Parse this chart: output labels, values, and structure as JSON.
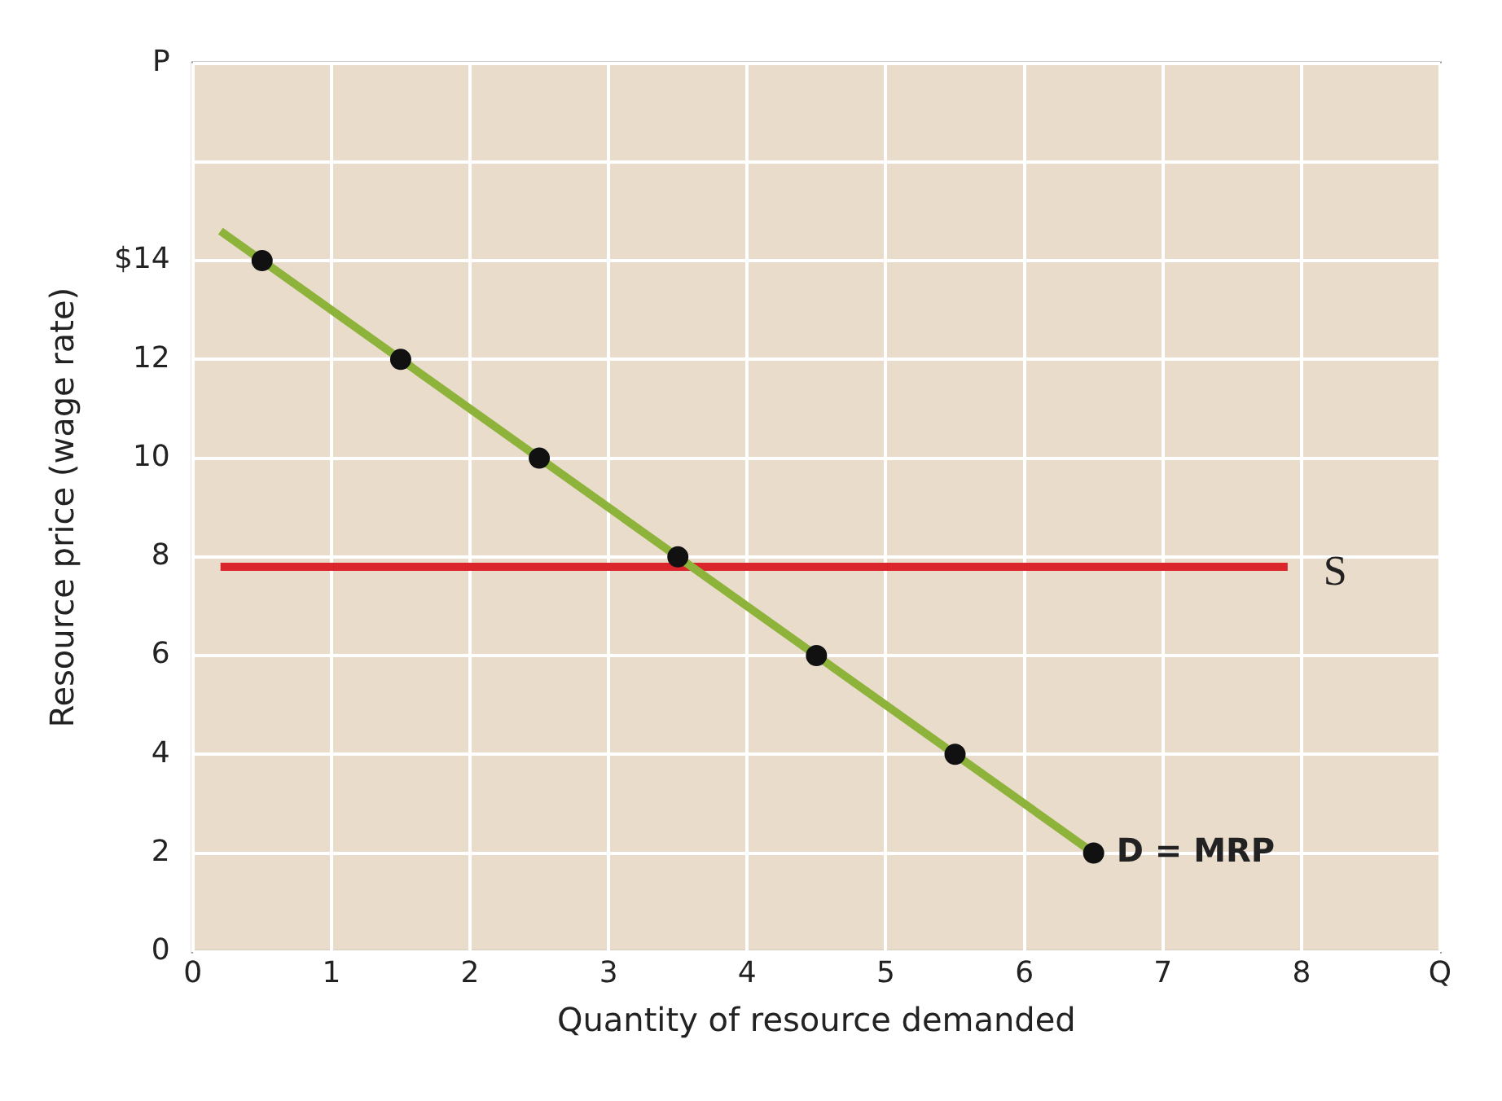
{
  "chart_data": {
    "type": "line",
    "xlabel": "Quantity of resource demanded",
    "ylabel": "Resource price (wage rate)",
    "xlim": [
      0,
      9
    ],
    "xticks": [
      0,
      1,
      2,
      3,
      4,
      5,
      6,
      7,
      8,
      {
        "value": 9,
        "label": "Q"
      }
    ],
    "ylim": [
      0,
      18
    ],
    "yticks": [
      0,
      2,
      4,
      6,
      8,
      10,
      12,
      {
        "value": 14,
        "label": "$14"
      },
      {
        "value": 16,
        "label": null
      },
      {
        "value": 18,
        "label": "P"
      }
    ],
    "grid": true,
    "series": [
      {
        "name": "D = MRP",
        "color": "#8db33a",
        "marker": "none",
        "x": [
          0.2,
          6.5
        ],
        "values": [
          14.6,
          2
        ]
      },
      {
        "type": "scatter",
        "color": "#111111",
        "marker": "circle",
        "x": [
          0.5,
          1.5,
          2.5,
          3.5,
          4.5,
          5.5,
          6.5
        ],
        "values": [
          14,
          12,
          10,
          8,
          6,
          4,
          2
        ]
      },
      {
        "name": "S",
        "color": "#d9252b",
        "marker": "none",
        "x": [
          0.2,
          7.9
        ],
        "values": [
          7.8,
          7.8
        ]
      }
    ]
  }
}
